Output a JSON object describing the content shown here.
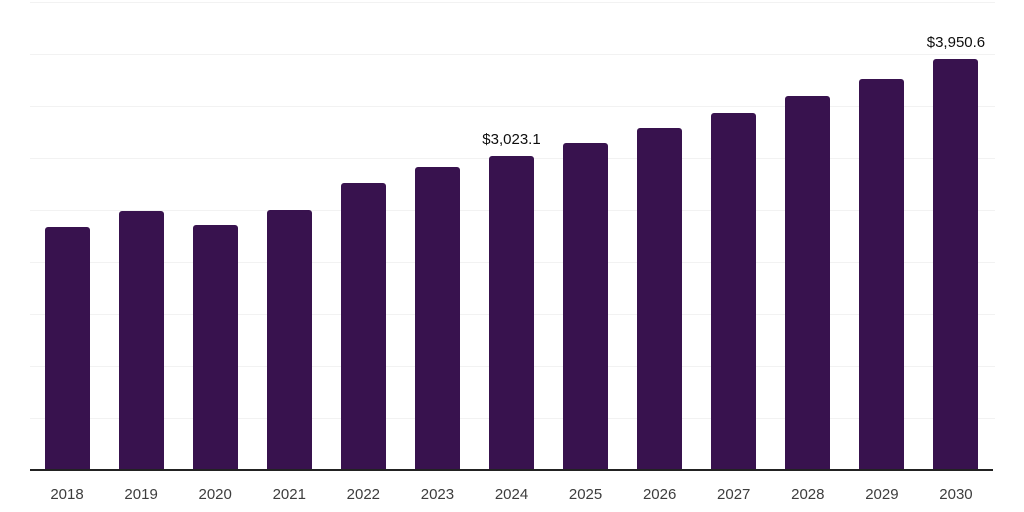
{
  "chart_data": {
    "type": "bar",
    "title": "",
    "xlabel": "",
    "ylabel": "",
    "categories": [
      "2018",
      "2019",
      "2020",
      "2021",
      "2022",
      "2023",
      "2024",
      "2025",
      "2026",
      "2027",
      "2028",
      "2029",
      "2030"
    ],
    "values": [
      2340,
      2490,
      2360,
      2500,
      2760,
      2910,
      3023.1,
      3140,
      3285,
      3430,
      3600,
      3760,
      3950.6
    ],
    "value_labels": [
      "",
      "",
      "",
      "",
      "",
      "",
      "$3,023.1",
      "",
      "",
      "",
      "",
      "",
      "$3,950.6"
    ],
    "ylim": [
      0,
      4500
    ],
    "gridline_step": 500,
    "grid": true,
    "legend_position": "none",
    "colors": {
      "bar": "#38124E",
      "gridline": "#F2F2F2",
      "axis_line": "#222222",
      "tick_label": "#3D3D3D",
      "value_label": "#0D0D0D",
      "background": "#FFFFFF"
    }
  }
}
